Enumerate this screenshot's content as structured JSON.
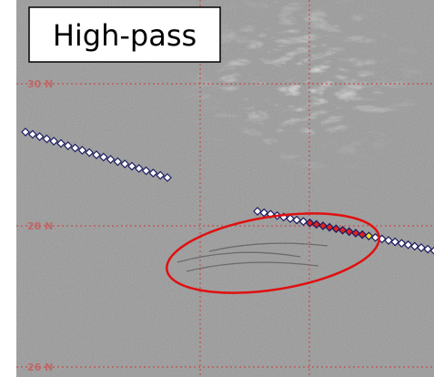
{
  "label": {
    "text": "High-pass"
  },
  "latitude_labels": [
    "30 N",
    "28 N",
    "26 N"
  ]
}
